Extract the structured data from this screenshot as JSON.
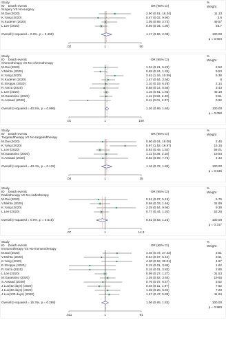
{
  "chart_data": [
    {
      "type": "forest",
      "header_study": "Study",
      "header_id": "ID",
      "outcome": "Death events",
      "subtitle": "Surgery VS No-surgery",
      "header_or": "OR (95% CI)",
      "header_pct": "%",
      "header_weight": "Weight",
      "studies": [
        "M.Dai (2020)",
        "K.Yang (2020)",
        "N.Kuderer (2020)",
        "L.Lee (2020)"
      ],
      "values": [
        2.9,
        0.47,
        1.05,
        0.66
      ],
      "lower": [
        0.51,
        0.02,
        0.69,
        0.34
      ],
      "upper": [
        16.34,
        9.5,
        3.73,
        1.3
      ],
      "value_labels": [
        "2.90 (0.51, 16.34)",
        "0.47 (0.02, 9.50)",
        "1.05 (0.69, 3.73)",
        "0.66 (0.34, 1.30)"
      ],
      "weights": [
        11.13,
        3.6,
        49.57,
        35.7
      ],
      "overall": {
        "label": "Overall (I-squared = 0.0%, p = 0.469)",
        "value": 1.17,
        "lower": 0.66,
        "upper": 2.08,
        "value_label": "1.17 (0.66, 2.08)",
        "weight": "100.00"
      },
      "p_label": "p = 0.604",
      "log_x": true,
      "xlim": [
        0.02,
        50
      ],
      "xticks": [
        {
          "value": 0.02,
          "label": ".02"
        },
        1,
        50
      ]
    },
    {
      "type": "forest",
      "header_study": "Study",
      "header_id": "ID",
      "outcome": "Death events",
      "subtitle": "Chemotherapy VS No-chemotherapy",
      "header_or": "OR (95% CI)",
      "header_pct": "%",
      "header_weight": "Weight",
      "studies": [
        "M.Dai (2020)",
        "V.Mehta (2020)",
        "K.Yang (2020)",
        "N.Kuderer (2020)",
        "E.Stroppa (2020)",
        "R.Yarza (2020)",
        "L.Lee (2020)",
        "M.Garassino (2020)",
        "S.Assaad (2020)"
      ],
      "values": [
        1.04,
        0.55,
        3.51,
        1.47,
        1.1,
        0.88,
        1.16,
        1.11,
        0.11
      ],
      "lower": [
        0.21,
        0.24,
        1.16,
        0.64,
        0.19,
        0.14,
        0.81,
        0.5,
        0.01
      ],
      "upper": [
        5.23,
        1.26,
        10.59,
        3.56,
        6.29,
        5.56,
        1.65,
        2.49,
        2.07
      ],
      "value_labels": [
        "1.04 (0.21, 5.23)",
        "0.55 (0.24, 1.26)",
        "3.51 (1.16, 10.59)",
        "1.47 (0.64, 3.56)",
        "1.10 (0.19, 6.29)",
        "0.88 (0.14, 5.56)",
        "1.16 (0.81, 1.65)",
        "1.11 (0.50, 2.49)",
        "0.11 (0.01, 2.07)"
      ],
      "weights": [
        2.53,
        9.53,
        5.36,
        8.0,
        2.14,
        3.43,
        45.19,
        9.51,
        0.92
      ],
      "overall": {
        "label": "Overall (I-squared = 40.5%, p = 0.096)",
        "value": 1.26,
        "lower": 0.99,
        "upper": 1.6,
        "value_label": "1.26 (0.99, 1.60)",
        "weight": "100.00"
      },
      "p_label": "p = 0.058",
      "log_x": true,
      "xlim": [
        0.01,
        100
      ],
      "xticks": [
        {
          "value": 0.01,
          "label": ".01"
        },
        1,
        100
      ]
    },
    {
      "type": "forest",
      "header_study": "Study",
      "header_id": "ID",
      "outcome": "Death events",
      "subtitle": "Targetedtherapy VS No-targetedtherapy",
      "header_or": "OR (95% CI)",
      "header_pct": "%",
      "header_weight": "Weight",
      "studies": [
        "M.Dai (2020)",
        "K.Yang (2020)",
        "L.Lee (2020)",
        "M.Garassino (2020)",
        "S.Assaad (2020)"
      ],
      "values": [
        0.8,
        5.97,
        0.63,
        1.11,
        0.82
      ],
      "lower": [
        0.04,
        1.52,
        0.45,
        0.36,
        0.09
      ],
      "upper": [
        16.08,
        16.97,
        1.54,
        3.1,
        7.75
      ],
      "value_labels": [
        "0.80 (0.04, 16.08)",
        "5.97 (1.52, 16.97)",
        "0.63 (0.45, 1.54)",
        "1.11 (0.36, 3.10)",
        "0.82 (0.09, 7.75)"
      ],
      "weights": [
        2.46,
        15.15,
        58.01,
        19.93,
        4.44
      ],
      "overall": {
        "label": "Overall (I-squared = 43.4%, p = 0.132)",
        "value": 1.16,
        "lower": 0.72,
        "upper": 1.85,
        "value_label": "1.16 (0.72, 1.85)",
        "weight": "100.00"
      },
      "p_label": "p = 0.546",
      "log_x": true,
      "xlim": [
        0.04,
        25
      ],
      "xticks": [
        {
          "value": 0.04,
          "label": ".04"
        },
        1,
        25
      ]
    },
    {
      "type": "forest",
      "header_study": "Study",
      "header_id": "ID",
      "outcome": "Death events",
      "subtitle": "Radiotherapy VS No-radiotherapy",
      "header_or": "OR (95% CI)",
      "header_pct": "%",
      "header_weight": "Weight",
      "studies": [
        "M.Dai (2020)",
        "V.Mehta (2020)",
        "K.Yang (2020)",
        "L.Lee (2020)"
      ],
      "values": [
        0.61,
        0.69,
        2.29,
        0.77
      ],
      "lower": [
        0.07,
        0.33,
        0.54,
        0.44
      ],
      "upper": [
        5.19,
        1.46,
        9.66,
        1.34
      ],
      "value_labels": [
        "0.61 (0.07, 5.19)",
        "0.69 (0.33, 1.46)",
        "2.29 (0.54, 9.66)",
        "0.77 (0.44, 1.34)"
      ],
      "weights": [
        5.76,
        31.56,
        9.39,
        53.28
      ],
      "overall": {
        "label": "Overall (I-squared = 0.0%, p = 0.518)",
        "value": 0.81,
        "lower": 0.53,
        "upper": 1.23,
        "value_label": "0.81 (0.53, 1.23)",
        "weight": "100.00"
      },
      "p_label": "p = 0.317",
      "log_x": true,
      "xlim": [
        0.07,
        14.3
      ],
      "xticks": [
        {
          "value": 0.07,
          "label": ".07"
        },
        1,
        14.3
      ]
    },
    {
      "type": "forest",
      "header_study": "Study",
      "header_id": "ID",
      "outcome": "Death events",
      "subtitle": "Immunotherapy VS No-immunotherapy",
      "header_or": "OR (95% CI)",
      "header_pct": "%",
      "header_weight": "Weight",
      "studies": [
        "M.Dai (2020)",
        "V.Mehta (2020)",
        "K.Yang (2020)",
        "E.Stroppa (2020)",
        "R.Yarza (2020)",
        "L.Lee (2020)",
        "M.Garassino (2020)",
        "S.Assaad (2020)",
        "J.Luo(42 days) (2020)",
        "J.Luo(30 days) (2020)",
        "J.Luo(100 days) (2020)"
      ],
      "values": [
        4.45,
        0.64,
        4.3,
        0.15,
        0.15,
        0.99,
        1.39,
        0.76,
        0.48,
        1.38,
        1.67
      ],
      "lower": [
        0.72,
        0.07,
        0.62,
        0.01,
        0.01,
        0.27,
        0.52,
        0.07,
        0.11,
        0.28,
        0.47
      ],
      "upper": [
        27.43,
        5.42,
        30.01,
        3.85,
        3.83,
        1.27,
        3.64,
        8.47,
        1.97,
        6.92,
        5.99
      ],
      "value_labels": [
        "4.45 (0.72, 27.43)",
        "0.64 (0.07, 5.42)",
        "4.30 (0.62, 30.01)",
        "0.15 (0.01, 3.85)",
        "0.15 (0.01, 3.83)",
        "0.99 (0.27, 1.27)",
        "1.39 (0.52, 3.64)",
        "0.76 (0.07, 8.47)",
        "0.48 (0.11, 1.97)",
        "1.38 (0.28, 6.92)",
        "1.67 (0.47, 5.99)"
      ],
      "weights": [
        3.61,
        3.61,
        4.67,
        1.62,
        2.85,
        31.53,
        19.65,
        3.62,
        7.62,
        7.23,
        11.62
      ],
      "overall": {
        "label": "Overall (I-squared = 16.3%, p = 0.289)",
        "value": 1.06,
        "lower": 0.65,
        "upper": 1.53,
        "value_label": "1.06 (0.65, 1.53)",
        "weight": "100.00"
      },
      "p_label": "p = 0.983",
      "log_x": true,
      "xlim": [
        0.011,
        91
      ],
      "xticks": [
        {
          "value": 0.011,
          "label": ".011"
        },
        1,
        91
      ]
    }
  ]
}
